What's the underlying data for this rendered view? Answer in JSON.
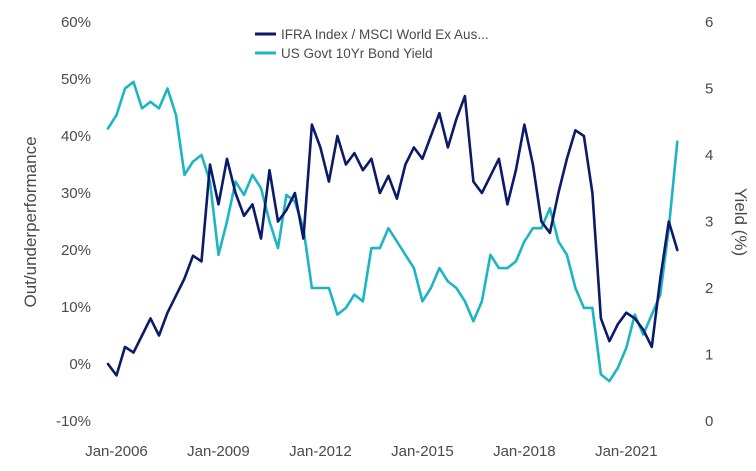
{
  "chart_data": {
    "type": "line",
    "legend_position": "top-center",
    "grid": false,
    "x_ticks": [
      "Jan-2006",
      "Jan-2009",
      "Jan-2012",
      "Jan-2015",
      "Jan-2018",
      "Jan-2021"
    ],
    "xlim": [
      "2005-10",
      "2022-09"
    ],
    "ylabel": "Out/underperformance",
    "ylim": [
      -10,
      60
    ],
    "y_ticks": [
      "-10%",
      "0%",
      "10%",
      "20%",
      "30%",
      "40%",
      "50%",
      "60%"
    ],
    "ylabel_right": "Yield (%)",
    "ylim_right": [
      0,
      6
    ],
    "y_ticks_right": [
      "0",
      "1",
      "2",
      "3",
      "4",
      "5",
      "6"
    ],
    "series": [
      {
        "name": "IFRA Index / MSCI World Ex Aus...",
        "axis": "left",
        "color": "#0c1a6a",
        "x": [
          "2005-10",
          "2006-01",
          "2006-04",
          "2006-07",
          "2006-10",
          "2007-01",
          "2007-04",
          "2007-07",
          "2007-10",
          "2008-01",
          "2008-04",
          "2008-07",
          "2008-10",
          "2009-01",
          "2009-04",
          "2009-07",
          "2009-10",
          "2010-01",
          "2010-04",
          "2010-07",
          "2010-10",
          "2011-01",
          "2011-04",
          "2011-07",
          "2011-10",
          "2012-01",
          "2012-04",
          "2012-07",
          "2012-10",
          "2013-01",
          "2013-04",
          "2013-07",
          "2013-10",
          "2014-01",
          "2014-04",
          "2014-07",
          "2014-10",
          "2015-01",
          "2015-04",
          "2015-07",
          "2015-10",
          "2016-01",
          "2016-04",
          "2016-07",
          "2016-10",
          "2017-01",
          "2017-04",
          "2017-07",
          "2017-10",
          "2018-01",
          "2018-04",
          "2018-07",
          "2018-10",
          "2019-01",
          "2019-04",
          "2019-07",
          "2019-10",
          "2020-01",
          "2020-04",
          "2020-07",
          "2020-10",
          "2021-01",
          "2021-04",
          "2021-07",
          "2021-10",
          "2022-01",
          "2022-04",
          "2022-07"
        ],
        "values": [
          0,
          -2,
          3,
          2,
          5,
          8,
          5,
          9,
          12,
          15,
          19,
          18,
          35,
          28,
          36,
          30,
          26,
          28,
          22,
          34,
          25,
          27,
          30,
          22,
          42,
          38,
          32,
          40,
          35,
          37,
          34,
          36,
          30,
          33,
          29,
          35,
          38,
          36,
          40,
          44,
          38,
          43,
          47,
          32,
          30,
          33,
          36,
          28,
          34,
          42,
          35,
          25,
          23,
          30,
          36,
          41,
          40,
          30,
          8,
          4,
          7,
          9,
          8,
          6,
          3,
          15,
          25,
          20
        ]
      },
      {
        "name": "US Govt 10Yr Bond Yield",
        "axis": "right",
        "color": "#1cb5c2",
        "x": [
          "2005-10",
          "2006-01",
          "2006-04",
          "2006-07",
          "2006-10",
          "2007-01",
          "2007-04",
          "2007-07",
          "2007-10",
          "2008-01",
          "2008-04",
          "2008-07",
          "2008-10",
          "2009-01",
          "2009-04",
          "2009-07",
          "2009-10",
          "2010-01",
          "2010-04",
          "2010-07",
          "2010-10",
          "2011-01",
          "2011-04",
          "2011-07",
          "2011-10",
          "2012-01",
          "2012-04",
          "2012-07",
          "2012-10",
          "2013-01",
          "2013-04",
          "2013-07",
          "2013-10",
          "2014-01",
          "2014-04",
          "2014-07",
          "2014-10",
          "2015-01",
          "2015-04",
          "2015-07",
          "2015-10",
          "2016-01",
          "2016-04",
          "2016-07",
          "2016-10",
          "2017-01",
          "2017-04",
          "2017-07",
          "2017-10",
          "2018-01",
          "2018-04",
          "2018-07",
          "2018-10",
          "2019-01",
          "2019-04",
          "2019-07",
          "2019-10",
          "2020-01",
          "2020-04",
          "2020-07",
          "2020-10",
          "2021-01",
          "2021-04",
          "2021-07",
          "2021-10",
          "2022-01",
          "2022-04",
          "2022-07"
        ],
        "values": [
          4.4,
          4.6,
          5.0,
          5.1,
          4.7,
          4.8,
          4.7,
          5.0,
          4.6,
          3.7,
          3.9,
          4.0,
          3.6,
          2.5,
          3.0,
          3.6,
          3.4,
          3.7,
          3.5,
          3.0,
          2.6,
          3.4,
          3.3,
          2.9,
          2.0,
          2.0,
          2.0,
          1.6,
          1.7,
          1.9,
          1.8,
          2.6,
          2.6,
          2.9,
          2.7,
          2.5,
          2.3,
          1.8,
          2.0,
          2.3,
          2.1,
          2.0,
          1.8,
          1.5,
          1.8,
          2.5,
          2.3,
          2.3,
          2.4,
          2.7,
          2.9,
          2.9,
          3.2,
          2.7,
          2.5,
          2.0,
          1.7,
          1.7,
          0.7,
          0.6,
          0.8,
          1.1,
          1.6,
          1.3,
          1.6,
          1.9,
          2.9,
          4.2
        ]
      }
    ]
  }
}
